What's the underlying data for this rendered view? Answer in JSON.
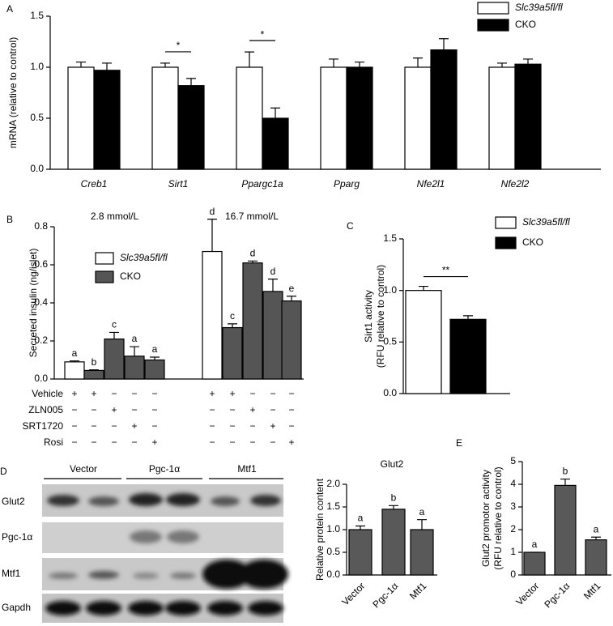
{
  "chart_data": [
    {
      "type": "bar",
      "panel": "A",
      "ylabel": "mRNA (relative to control)",
      "categories": [
        "Creb1",
        "Sirt1",
        "Ppargc1a",
        "Pparg",
        "Nfe2l1",
        "Nfe2l2"
      ],
      "series": [
        {
          "name": "Slc39a5fl/fl",
          "color": "#ffffff",
          "values": [
            1,
            1,
            1,
            1,
            1,
            1
          ],
          "errors": [
            0.05,
            0.04,
            0.15,
            0.08,
            0.09,
            0.04
          ]
        },
        {
          "name": "CKO",
          "color": "#000000",
          "values": [
            0.97,
            0.82,
            0.5,
            1.0,
            1.17,
            1.03
          ],
          "errors": [
            0.07,
            0.07,
            0.1,
            0.05,
            0.11,
            0.05
          ]
        }
      ],
      "ylim": [
        0,
        1.5
      ],
      "yticks": [
        {
          "value": 0,
          "label": "0.0"
        },
        {
          "value": 0.5,
          "label": "0.5"
        },
        {
          "value": 1,
          "label": "1.0"
        },
        {
          "value": 1.5,
          "label": "1.5"
        }
      ],
      "annotations": [
        {
          "text": "*",
          "category": "Sirt1"
        },
        {
          "text": "*",
          "category": "Ppargc1a"
        }
      ]
    },
    {
      "type": "bar",
      "panel": "B",
      "ylabel": "Secreted insulin (ng/islet)",
      "group_labels": [
        "2.8 mmol/L",
        "16.7 mmol/L"
      ],
      "values": [
        0.09,
        0.045,
        0.21,
        0.12,
        0.1,
        0.67,
        0.27,
        0.61,
        0.46,
        0.41
      ],
      "errors": [
        0.005,
        0.003,
        0.035,
        0.05,
        0.015,
        0.17,
        0.02,
        0.01,
        0.065,
        0.025
      ],
      "colors": [
        "#ffffff",
        "#555555",
        "#555555",
        "#555555",
        "#555555",
        "#ffffff",
        "#555555",
        "#555555",
        "#555555",
        "#555555"
      ],
      "letters": [
        "a",
        "b",
        "c",
        "a",
        "a",
        "d",
        "c",
        "d",
        "d",
        "e"
      ],
      "legend": [
        {
          "name": "Slc39a5fl/fl",
          "color": "#ffffff"
        },
        {
          "name": "CKO",
          "color": "#555555"
        }
      ],
      "treatments": [
        {
          "name": "Vehicle",
          "signs": [
            "+",
            "+",
            "−",
            "−",
            "−",
            "+",
            "+",
            "−",
            "−",
            "−"
          ]
        },
        {
          "name": "ZLN005",
          "signs": [
            "−",
            "−",
            "+",
            "−",
            "−",
            "−",
            "−",
            "+",
            "−",
            "−"
          ]
        },
        {
          "name": "SRT1720",
          "signs": [
            "−",
            "−",
            "−",
            "+",
            "−",
            "−",
            "−",
            "−",
            "+",
            "−"
          ]
        },
        {
          "name": "Rosi",
          "signs": [
            "−",
            "−",
            "−",
            "−",
            "+",
            "−",
            "−",
            "−",
            "−",
            "+"
          ]
        }
      ],
      "ylim": [
        0,
        0.8
      ],
      "yticks": [
        {
          "value": 0,
          "label": "0.0"
        },
        0.2,
        0.4,
        0.6,
        0.8
      ]
    },
    {
      "type": "bar",
      "panel": "C",
      "ylabel": [
        "Sirt1 activity",
        "(RFU relative to control)"
      ],
      "values": [
        1.0,
        0.72
      ],
      "errors": [
        0.04,
        0.035
      ],
      "colors": [
        "#ffffff",
        "#000000"
      ],
      "legend": [
        {
          "name": "Slc39a5fl/fl",
          "color": "#ffffff"
        },
        {
          "name": "CKO",
          "color": "#000000"
        }
      ],
      "annotations": [
        {
          "text": "**"
        }
      ],
      "ylim": [
        0,
        1.5
      ],
      "yticks": [
        {
          "value": 0,
          "label": "0.0"
        },
        0.5,
        {
          "value": 1,
          "label": "1.0"
        },
        1.5
      ]
    },
    {
      "type": "bar",
      "panel": "D",
      "title": "Glut2",
      "ylabel": "Relative protein content",
      "categories": [
        "Vector",
        "Pgc-1α",
        "Mtf1"
      ],
      "values": [
        1.0,
        1.45,
        1.0
      ],
      "errors": [
        0.08,
        0.08,
        0.22
      ],
      "color": "#595959",
      "letters": [
        "a",
        "b",
        "a"
      ],
      "ylim": [
        0,
        2.0
      ],
      "yticks": [
        {
          "value": 0,
          "label": "0.0"
        },
        0.5,
        {
          "value": 1,
          "label": "1.0"
        },
        1.5,
        {
          "value": 2,
          "label": "2.0"
        }
      ]
    },
    {
      "type": "bar",
      "panel": "E",
      "ylabel": [
        "Glut2 promotor activity",
        "(RFU relative to control)"
      ],
      "categories": [
        "Vector",
        "Pgc-1α",
        "Mtf1"
      ],
      "values": [
        1.0,
        3.95,
        1.55
      ],
      "errors": [
        0,
        0.28,
        0.12
      ],
      "color": "#595959",
      "letters": [
        "a",
        "b",
        "a"
      ],
      "ylim": [
        0,
        5
      ],
      "yticks": [
        0,
        1,
        2,
        3,
        4,
        5
      ]
    }
  ],
  "blot": {
    "groups": [
      "Vector",
      "Pgc-1α",
      "Mtf1"
    ],
    "rows": [
      "Glut2",
      "Pgc-1α",
      "Mtf1",
      "Gapdh"
    ]
  }
}
